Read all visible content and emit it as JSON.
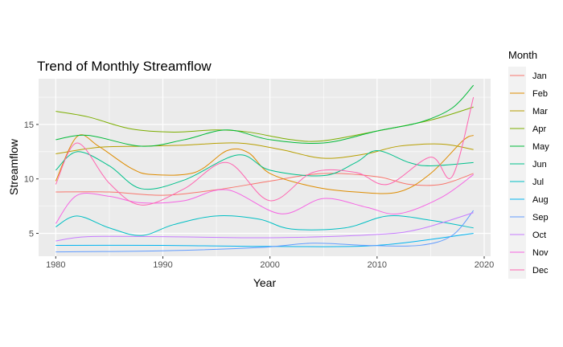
{
  "chart_data": {
    "type": "line",
    "title": "Trend of Monthly Streamflow",
    "xlabel": "Year",
    "ylabel": "Streamflow",
    "xlim": [
      1978.4,
      2020.6
    ],
    "ylim": [
      2.9,
      19.2
    ],
    "x_ticks": [
      1980,
      1990,
      2000,
      2010,
      2020
    ],
    "y_ticks": [
      5,
      10,
      15
    ],
    "grid": true,
    "legend_title": "Month",
    "legend_position": "right",
    "series": [
      {
        "name": "Jan",
        "color": "#F8766D",
        "points": [
          [
            1980,
            8.8
          ],
          [
            1985,
            8.8
          ],
          [
            1990,
            8.5
          ],
          [
            1995,
            9.0
          ],
          [
            2000,
            9.8
          ],
          [
            2005,
            10.5
          ],
          [
            2010,
            10.2
          ],
          [
            2013,
            9.5
          ],
          [
            2016,
            9.5
          ],
          [
            2019,
            10.5
          ]
        ]
      },
      {
        "name": "Feb",
        "color": "#DE8C00",
        "points": [
          [
            1980,
            9.8
          ],
          [
            1982,
            13.9
          ],
          [
            1984,
            13.0
          ],
          [
            1987,
            11.0
          ],
          [
            1989,
            10.4
          ],
          [
            1993,
            10.6
          ],
          [
            1996,
            12.6
          ],
          [
            1998,
            12.4
          ],
          [
            2000,
            10.5
          ],
          [
            2004,
            9.3
          ],
          [
            2008,
            8.8
          ],
          [
            2012,
            8.8
          ],
          [
            2015,
            10.5
          ],
          [
            2018,
            13.5
          ],
          [
            2019,
            14.0
          ]
        ]
      },
      {
        "name": "Mar",
        "color": "#B79F00",
        "points": [
          [
            1980,
            12.3
          ],
          [
            1984,
            12.9
          ],
          [
            1988,
            13.0
          ],
          [
            1992,
            13.1
          ],
          [
            1997,
            13.3
          ],
          [
            2001,
            12.7
          ],
          [
            2005,
            11.9
          ],
          [
            2009,
            12.3
          ],
          [
            2012,
            13.0
          ],
          [
            2016,
            13.2
          ],
          [
            2019,
            12.7
          ]
        ]
      },
      {
        "name": "Apr",
        "color": "#7CAE00",
        "points": [
          [
            1980,
            16.2
          ],
          [
            1983,
            15.7
          ],
          [
            1987,
            14.6
          ],
          [
            1991,
            14.3
          ],
          [
            1995,
            14.5
          ],
          [
            1998,
            14.3
          ],
          [
            2002,
            13.6
          ],
          [
            2005,
            13.5
          ],
          [
            2010,
            14.4
          ],
          [
            2015,
            15.4
          ],
          [
            2019,
            16.6
          ]
        ]
      },
      {
        "name": "May",
        "color": "#00BA38",
        "points": [
          [
            1980,
            13.6
          ],
          [
            1983,
            14.0
          ],
          [
            1988,
            13.0
          ],
          [
            1992,
            13.6
          ],
          [
            1996,
            14.5
          ],
          [
            2000,
            13.6
          ],
          [
            2005,
            13.3
          ],
          [
            2010,
            14.4
          ],
          [
            2014,
            15.2
          ],
          [
            2017,
            16.5
          ],
          [
            2019,
            18.6
          ]
        ]
      },
      {
        "name": "Jun",
        "color": "#00C08B",
        "points": [
          [
            1980,
            10.8
          ],
          [
            1982,
            12.5
          ],
          [
            1985,
            11.2
          ],
          [
            1988,
            9.1
          ],
          [
            1992,
            9.9
          ],
          [
            1997,
            12.2
          ],
          [
            2000,
            10.8
          ],
          [
            2005,
            10.3
          ],
          [
            2008,
            11.5
          ],
          [
            2010,
            12.6
          ],
          [
            2013,
            11.5
          ],
          [
            2015,
            11.2
          ],
          [
            2019,
            11.5
          ]
        ]
      },
      {
        "name": "Jul",
        "color": "#00BFC4",
        "points": [
          [
            1980,
            5.6
          ],
          [
            1982,
            6.6
          ],
          [
            1985,
            5.5
          ],
          [
            1988,
            4.8
          ],
          [
            1991,
            5.8
          ],
          [
            1995,
            6.6
          ],
          [
            1999,
            6.3
          ],
          [
            2002,
            5.4
          ],
          [
            2007,
            5.5
          ],
          [
            2011,
            6.6
          ],
          [
            2015,
            6.2
          ],
          [
            2019,
            5.5
          ]
        ]
      },
      {
        "name": "Aug",
        "color": "#00B4F0",
        "points": [
          [
            1980,
            3.9
          ],
          [
            1990,
            3.9
          ],
          [
            2000,
            3.8
          ],
          [
            2010,
            3.9
          ],
          [
            2019,
            5.0
          ]
        ]
      },
      {
        "name": "Sep",
        "color": "#619CFF",
        "points": [
          [
            1980,
            3.3
          ],
          [
            1990,
            3.4
          ],
          [
            1999,
            3.7
          ],
          [
            2004,
            4.1
          ],
          [
            2009,
            3.9
          ],
          [
            2014,
            3.9
          ],
          [
            2017,
            4.8
          ],
          [
            2019,
            7.1
          ]
        ]
      },
      {
        "name": "Oct",
        "color": "#C77CFF",
        "points": [
          [
            1980,
            4.3
          ],
          [
            1983,
            4.7
          ],
          [
            1990,
            4.7
          ],
          [
            2000,
            4.6
          ],
          [
            2010,
            4.9
          ],
          [
            2014,
            5.4
          ],
          [
            2019,
            6.9
          ]
        ]
      },
      {
        "name": "Nov",
        "color": "#F564E3",
        "points": [
          [
            1980,
            5.9
          ],
          [
            1982,
            8.5
          ],
          [
            1985,
            8.4
          ],
          [
            1988,
            7.8
          ],
          [
            1992,
            8.0
          ],
          [
            1996,
            9.0
          ],
          [
            2001,
            6.8
          ],
          [
            2005,
            8.2
          ],
          [
            2009,
            7.4
          ],
          [
            2012,
            6.8
          ],
          [
            2016,
            8.3
          ],
          [
            2019,
            10.4
          ]
        ]
      },
      {
        "name": "Dec",
        "color": "#FF64B0",
        "points": [
          [
            1980,
            9.5
          ],
          [
            1982,
            13.3
          ],
          [
            1985,
            9.6
          ],
          [
            1988,
            7.6
          ],
          [
            1992,
            9.1
          ],
          [
            1996,
            11.5
          ],
          [
            2000,
            8.0
          ],
          [
            2004,
            10.6
          ],
          [
            2008,
            10.6
          ],
          [
            2011,
            9.5
          ],
          [
            2015,
            12.0
          ],
          [
            2017,
            10.2
          ],
          [
            2019,
            17.5
          ]
        ]
      }
    ]
  }
}
